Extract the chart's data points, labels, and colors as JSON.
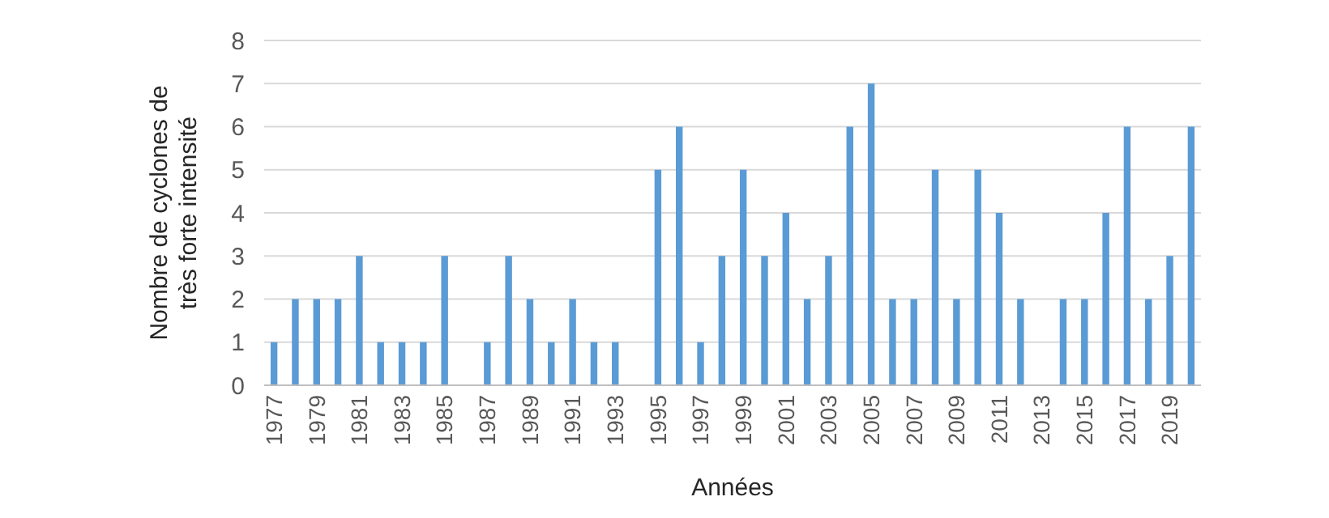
{
  "chart_data": {
    "type": "bar",
    "xlabel": "Années",
    "ylabel": "Nombre de cyclones de très forte intensité",
    "categories": [
      "1977",
      null,
      "1979",
      null,
      "1981",
      null,
      "1983",
      null,
      "1985",
      null,
      "1987",
      null,
      "1989",
      null,
      "1991",
      null,
      "1993",
      null,
      "1995",
      null,
      "1997",
      null,
      "1999",
      null,
      "2001",
      null,
      "2003",
      null,
      "2005",
      null,
      "2007",
      null,
      "2009",
      null,
      "2011",
      null,
      "2013",
      null,
      "2015",
      null,
      "2017",
      null,
      "2019",
      null
    ],
    "values": [
      1,
      2,
      2,
      2,
      3,
      1,
      1,
      1,
      3,
      0,
      1,
      3,
      2,
      1,
      2,
      1,
      1,
      0,
      5,
      6,
      1,
      3,
      5,
      3,
      4,
      2,
      3,
      6,
      7,
      2,
      2,
      5,
      2,
      5,
      4,
      2,
      0,
      2,
      2,
      4,
      6,
      2,
      3,
      6
    ],
    "color": "#5b9bd5",
    "ylim": [
      0,
      8
    ],
    "yticks": [
      0,
      1,
      2,
      3,
      4,
      5,
      6,
      7,
      8
    ],
    "grid": "y"
  }
}
